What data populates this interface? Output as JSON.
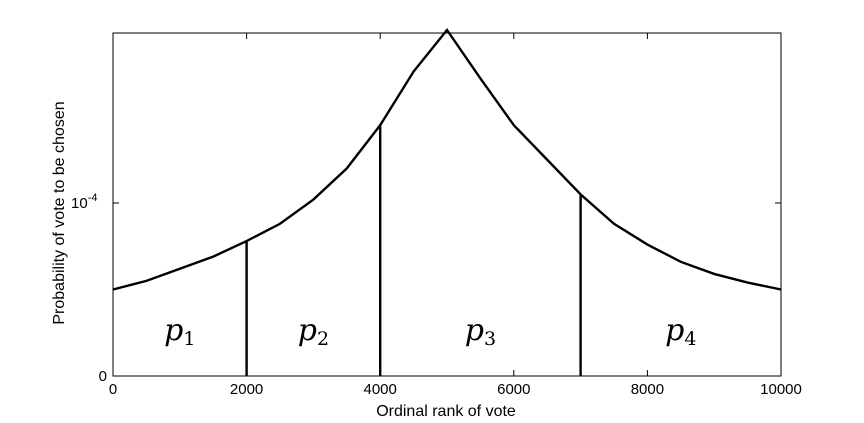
{
  "chart_data": {
    "type": "line",
    "title": "",
    "xlabel": "Ordinal rank of vote",
    "ylabel": "Probability of vote to be chosen",
    "xlim": [
      0,
      10000
    ],
    "xticks": [
      0,
      2000,
      4000,
      6000,
      8000,
      10000
    ],
    "xtick_labels": [
      "0",
      "2000",
      "4000",
      "6000",
      "8000",
      "10000"
    ],
    "ytick_labels": [
      {
        "base": "0",
        "exp": ""
      },
      {
        "base": "10",
        "exp": "-4"
      }
    ],
    "grid": false,
    "series": [
      {
        "x": [
          0,
          500,
          1000,
          1500,
          2000,
          2500,
          3000,
          3500,
          4000,
          4500,
          5000,
          5500,
          6000,
          6500,
          7000,
          7500,
          8000,
          8500,
          9000,
          9500,
          10000
        ],
        "y": [
          0.5,
          0.55,
          0.62,
          0.69,
          0.78,
          0.88,
          1.02,
          1.2,
          1.45,
          1.76,
          2.0,
          1.72,
          1.45,
          1.25,
          1.05,
          0.88,
          0.76,
          0.66,
          0.59,
          0.54,
          0.5
        ],
        "y_note": "relative to 10^-4 tick"
      }
    ],
    "dividers": [
      {
        "x": 2000,
        "y": 0.78
      },
      {
        "x": 4000,
        "y": 1.45
      },
      {
        "x": 7000,
        "y": 1.05
      }
    ],
    "regions": [
      {
        "base": "p",
        "sub": "1",
        "x_center": 1000
      },
      {
        "base": "p",
        "sub": "2",
        "x_center": 3000
      },
      {
        "base": "p",
        "sub": "3",
        "x_center": 5500
      },
      {
        "base": "p",
        "sub": "4",
        "x_center": 8500
      }
    ]
  }
}
